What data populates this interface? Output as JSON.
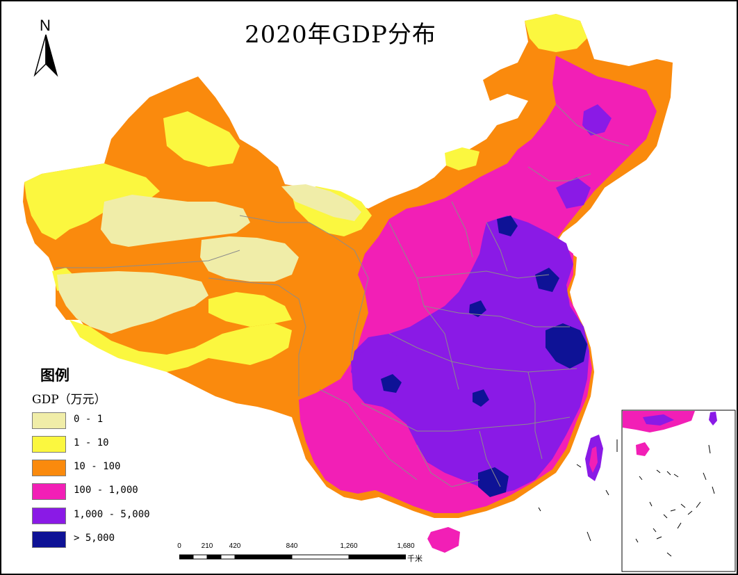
{
  "title": "2020年GDP分布",
  "north_arrow": {
    "label": "N"
  },
  "legend": {
    "title": "图例",
    "subtitle": "GDP（万元）",
    "items": [
      {
        "label": "0 - 1",
        "color": "#f0eda8"
      },
      {
        "label": "1 - 10",
        "color": "#fbf73f"
      },
      {
        "label": "10 - 100",
        "color": "#fa8a0d"
      },
      {
        "label": "100 - 1,000",
        "color": "#f21fb6"
      },
      {
        "label": "1,000 - 5,000",
        "color": "#8a1ae6"
      },
      {
        "label": "> 5,000",
        "color": "#0e1296"
      }
    ]
  },
  "scale_bar": {
    "ticks": [
      "0",
      "210",
      "420",
      "840",
      "1,260",
      "1,680"
    ],
    "unit": "千米"
  },
  "colors": {
    "very_low": "#f0eda8",
    "low": "#fbf73f",
    "medium": "#fa8a0d",
    "high": "#f21fb6",
    "very_high": "#8a1ae6",
    "highest": "#0e1296",
    "boundary": "#8c8c8c"
  }
}
